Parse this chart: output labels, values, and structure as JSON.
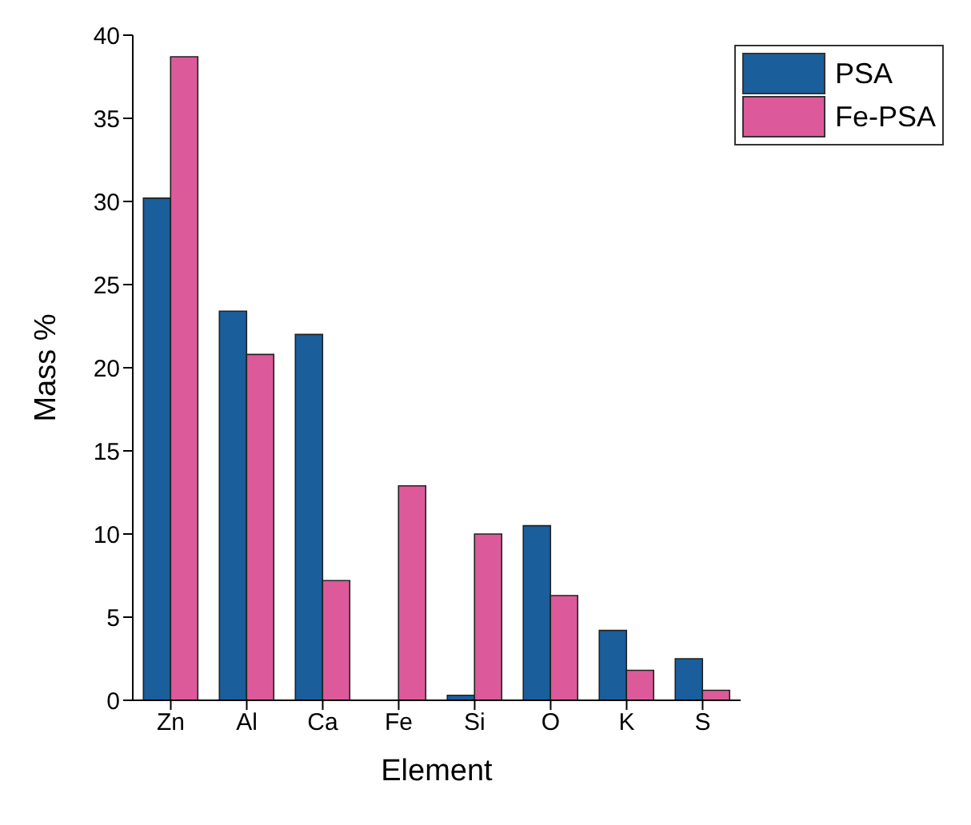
{
  "chart_data": {
    "type": "bar",
    "xlabel": "Element",
    "ylabel": "Mass %",
    "categories": [
      "Zn",
      "Al",
      "Ca",
      "Fe",
      "Si",
      "O",
      "K",
      "S"
    ],
    "series": [
      {
        "name": "PSA",
        "color": "#1a5e9c",
        "values": [
          30.2,
          23.4,
          22.0,
          0,
          0.3,
          10.5,
          4.2,
          2.5
        ]
      },
      {
        "name": "Fe-PSA",
        "color": "#dc5a9a",
        "values": [
          38.7,
          20.8,
          7.2,
          12.9,
          10.0,
          6.3,
          1.8,
          0.6
        ]
      }
    ],
    "ylim": [
      0,
      40
    ],
    "yticks": [
      0,
      5,
      10,
      15,
      20,
      25,
      30,
      35,
      40
    ],
    "grid": false,
    "legend": "top right"
  }
}
